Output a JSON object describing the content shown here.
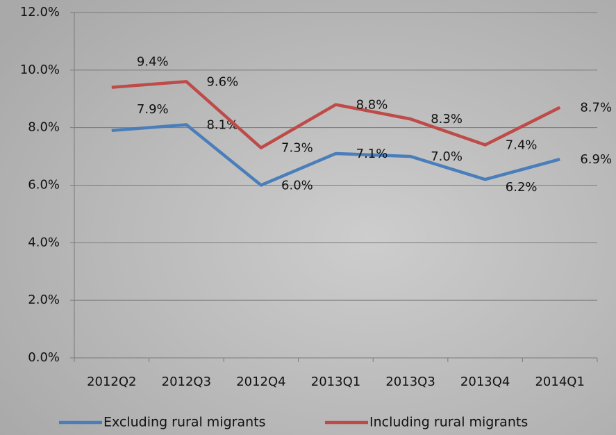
{
  "chart_data": {
    "type": "line",
    "categories": [
      "2012Q2",
      "2012Q3",
      "2012Q4",
      "2013Q1",
      "2013Q3",
      "2013Q4",
      "2014Q1"
    ],
    "series": [
      {
        "name": "Excluding rural migrants",
        "color": "#4a7ebb",
        "values": [
          7.9,
          8.1,
          6.0,
          7.1,
          7.0,
          6.2,
          6.9
        ],
        "value_labels": [
          "7.9%",
          "8.1%",
          "6.0%",
          "7.1%",
          "7.0%",
          "6.2%",
          "6.9%"
        ]
      },
      {
        "name": "Including rural migrants",
        "color": "#be4b48",
        "values": [
          9.4,
          9.6,
          7.3,
          8.8,
          8.3,
          7.4,
          8.7
        ],
        "value_labels": [
          "9.4%",
          "9.6%",
          "7.3%",
          "8.8%",
          "8.3%",
          "7.4%",
          "8.7%"
        ]
      }
    ],
    "ylim": [
      0,
      12
    ],
    "yticks": [
      {
        "value": 0,
        "label": "0.0%"
      },
      {
        "value": 2,
        "label": "2.0%"
      },
      {
        "value": 4,
        "label": "4.0%"
      },
      {
        "value": 6,
        "label": "6.0%"
      },
      {
        "value": 8,
        "label": "8.0%"
      },
      {
        "value": 10,
        "label": "10.0%"
      },
      {
        "value": 12,
        "label": "12.0%"
      }
    ],
    "grid": true,
    "legend": "bottom"
  }
}
